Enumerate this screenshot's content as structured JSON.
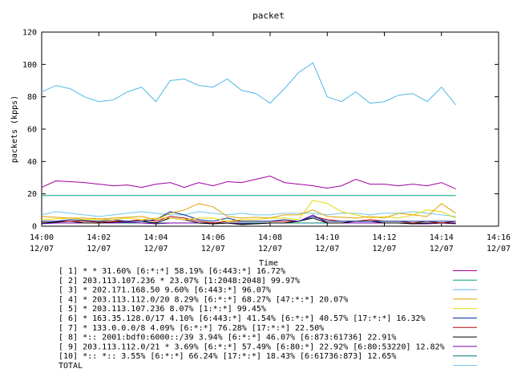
{
  "chart_data": {
    "type": "line",
    "title": "packet",
    "xlabel": "Time",
    "ylabel": "packets (kpps)",
    "ylim": [
      0,
      120
    ],
    "yticks": [
      0,
      20,
      40,
      60,
      80,
      100,
      120
    ],
    "xlim_minutes": [
      0,
      16
    ],
    "xticks": [
      {
        "time": "14:00",
        "date": "12/07"
      },
      {
        "time": "14:02",
        "date": "12/07"
      },
      {
        "time": "14:04",
        "date": "12/07"
      },
      {
        "time": "14:06",
        "date": "12/07"
      },
      {
        "time": "14:08",
        "date": "12/07"
      },
      {
        "time": "14:10",
        "date": "12/07"
      },
      {
        "time": "14:12",
        "date": "12/07"
      },
      {
        "time": "14:14",
        "date": "12/07"
      },
      {
        "time": "14:16",
        "date": "12/07"
      }
    ],
    "x_times": [
      "14:00:00",
      "14:00:30",
      "14:01:00",
      "14:01:30",
      "14:02:00",
      "14:02:30",
      "14:03:00",
      "14:03:30",
      "14:04:00",
      "14:04:30",
      "14:05:00",
      "14:05:30",
      "14:06:00",
      "14:06:30",
      "14:07:00",
      "14:07:30",
      "14:08:00",
      "14:08:30",
      "14:09:00",
      "14:09:30",
      "14:10:00",
      "14:10:30",
      "14:11:00",
      "14:11:30",
      "14:12:00",
      "14:12:30",
      "14:13:00",
      "14:13:30",
      "14:14:00",
      "14:14:30"
    ],
    "grid": false,
    "series": [
      {
        "name": "[ 1] * * 31.60%  [6:*:*] 58.19% [6:443:*] 16.72%",
        "color": "#a000a0",
        "values": [
          24,
          28,
          27.5,
          27,
          26,
          25,
          25.5,
          24,
          26,
          27,
          24,
          27,
          25,
          27.5,
          27,
          29,
          31,
          27,
          26,
          25,
          23.5,
          25,
          29,
          26,
          26,
          25,
          26,
          25,
          27,
          23
        ]
      },
      {
        "name": "[ 2] 203.113.107.236 * 23.07%  [1:2048:2048] 99.97%",
        "color": "#00a080",
        "values": [
          19,
          19,
          19,
          19,
          19,
          19,
          19,
          19,
          19,
          19,
          19,
          19,
          19,
          19,
          19,
          19,
          19,
          19,
          19,
          19,
          19,
          19,
          19,
          19,
          19,
          19,
          19,
          19,
          19,
          19
        ]
      },
      {
        "name": "[ 3] * 202.171.168.50 9.60%  [6:443:*] 96.07%",
        "color": "#50b8e8",
        "values": [
          83,
          87,
          85,
          80,
          77,
          78,
          83,
          86,
          77,
          90,
          91,
          87,
          86,
          91,
          84,
          82,
          76,
          85,
          95,
          101,
          80,
          77,
          83,
          76,
          77,
          81,
          82,
          77,
          86,
          75
        ]
      },
      {
        "name": "[ 4] * 203.113.112.0/20 8.29%  [6:*:*] 68.27% [47:*:*] 20.07%",
        "color": "#e0a000",
        "values": [
          6,
          5.5,
          5,
          5,
          4.5,
          5,
          5.5,
          6,
          4,
          8,
          10,
          14,
          12,
          6,
          5,
          5.5,
          5,
          7,
          7,
          10,
          6,
          5.5,
          5,
          6,
          5,
          8,
          7,
          6,
          14,
          8
        ]
      },
      {
        "name": "[ 5] * 203.113.107.236 8.07%  [1:*:*] 99.45%",
        "color": "#e8d800",
        "values": [
          4,
          4.5,
          5,
          4,
          4,
          4,
          5,
          4,
          5,
          5,
          4,
          5,
          5,
          3,
          4,
          4,
          5,
          5,
          4,
          16,
          14,
          9,
          7,
          5,
          6,
          5,
          7,
          10,
          9,
          5
        ]
      },
      {
        "name": "[ 6] * 163.35.128.0/17 4.10%  [6:443:*] 41.54% [6:*:*] 40.57% [17:*:*] 16.32%",
        "color": "#0030a0",
        "values": [
          3,
          3,
          4,
          3.5,
          3,
          4,
          3,
          3,
          4,
          9,
          7,
          4,
          3,
          5,
          3,
          3,
          3,
          4,
          3,
          6,
          3,
          3,
          3,
          3,
          3,
          3,
          3,
          3,
          3,
          3
        ]
      },
      {
        "name": "[ 7] * 133.0.0.0/8 4.09%  [6:*:*] 76.28% [17:*:*] 22.50%",
        "color": "#c00000",
        "values": [
          3,
          3,
          3,
          3,
          2.5,
          3,
          3,
          4,
          3,
          6,
          5,
          3,
          2,
          3,
          3,
          3,
          3,
          3,
          3,
          6,
          4,
          3,
          3,
          4,
          3,
          3,
          2,
          3,
          2,
          3
        ]
      },
      {
        "name": "[ 8] *:: 2001:bdf0:6000::/39 3.94%  [6:*:*] 46.07% [6:873:61736] 22.91%",
        "color": "#000000",
        "values": [
          2,
          2.5,
          3,
          2,
          2,
          2.5,
          3,
          3,
          2,
          5,
          4,
          2,
          1.5,
          2,
          1,
          1.5,
          2,
          2,
          3,
          5,
          2,
          2,
          3,
          3,
          2,
          2,
          1.5,
          2,
          2,
          2
        ]
      },
      {
        "name": "[ 9] 203.113.112.0/21 * 3.69%  [6:*:*] 57.49% [6:80:*] 22.92% [6:80:53220] 12.82%",
        "color": "#7000b0",
        "values": [
          1.5,
          2,
          2,
          2,
          2,
          2,
          2.5,
          2,
          1.5,
          2,
          2,
          2,
          1.5,
          2,
          1.5,
          1.5,
          2,
          2,
          3,
          7,
          2,
          2,
          2,
          2,
          2,
          2,
          1.5,
          1.5,
          2,
          1.5
        ]
      },
      {
        "name": "[10] *:: *:: 3.55%  [6:*:*] 66.24% [17:*:*] 18.43% [6:61736:873] 12.65%",
        "color": "#008070",
        "values": [
          2,
          2,
          2,
          2,
          2,
          2,
          2,
          2,
          2,
          2,
          2,
          2,
          2,
          2,
          2,
          2,
          2,
          2,
          2,
          2,
          2,
          2,
          2,
          2,
          2,
          2,
          2,
          2,
          2,
          2
        ]
      },
      {
        "name": "TOTAL",
        "color": "#70c8e8",
        "values": [
          7,
          9,
          8,
          7,
          6,
          7,
          8,
          9,
          8,
          7,
          7,
          9,
          8,
          7,
          8,
          7,
          7,
          8,
          8,
          8,
          7,
          8,
          8,
          7,
          8,
          8,
          9,
          8,
          7,
          6
        ]
      }
    ]
  }
}
